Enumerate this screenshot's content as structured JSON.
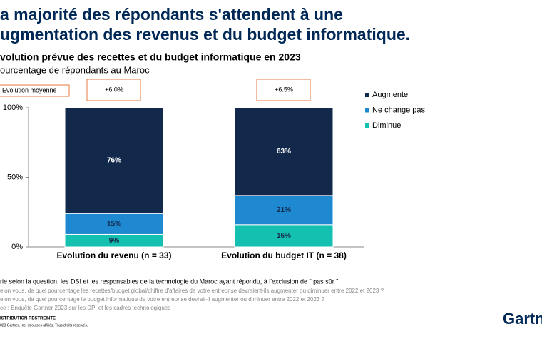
{
  "header": {
    "title_lines": [
      "a majorité des répondants s'attendent à une",
      "ugmentation des revenus et du budget informatique."
    ]
  },
  "chart_data": {
    "type": "stacked_bar",
    "title": "volution prévue des recettes et du budget informatique en 2023",
    "subtitle": "ourcentage de répondants au Maroc",
    "annotation_legend": "Evolution moyenne",
    "annotations": [
      "+6.0%",
      "+6.5%"
    ],
    "categories": [
      "Evolution du revenu (n = 33)",
      "Evolution du budget IT (n = 38)"
    ],
    "series": [
      {
        "name": "Augmente",
        "color": "#13294b",
        "values": [
          76,
          63
        ],
        "value_labels": [
          "76%",
          "63%"
        ]
      },
      {
        "name": "Ne change pas",
        "color": "#1e88d0",
        "values": [
          15,
          21
        ],
        "value_labels": [
          "15%",
          "21%"
        ]
      },
      {
        "name": "Diminue",
        "color": "#14c1b1",
        "values": [
          9,
          16
        ],
        "value_labels": [
          "9%",
          "16%"
        ]
      }
    ],
    "ylim": [
      0,
      100
    ],
    "yticks": [
      {
        "value": 0,
        "label": "0%"
      },
      {
        "value": 50,
        "label": "50%"
      },
      {
        "value": 100,
        "label": "100%"
      }
    ]
  },
  "footer": {
    "notes": [
      "rie selon la question, les DSI et les responsables de la technologie du Maroc ayant répondu, à l'exclusion de \" pas sûr \".",
      "elon vous, de quel pourcentage les recettes/budget global/chiffre d'affaires de votre entreprise devraient-ils augmenter ou diminuer entre 2022 et 2023 ?",
      "elon vous, de quel pourcentage le budget informatique de votre entreprise devrait-il augmenter ou diminuer entre 2022 et 2023 ?",
      "ce : Enquête Gartner 2023 sur les DPI et les cadres technologiques"
    ],
    "distribution": "ISTRIBUTION RESTREINTE",
    "copyright": "023 Gartner, Inc. et/ou ses affiliés. Tous droits réservés.",
    "logo": "Gartn"
  }
}
